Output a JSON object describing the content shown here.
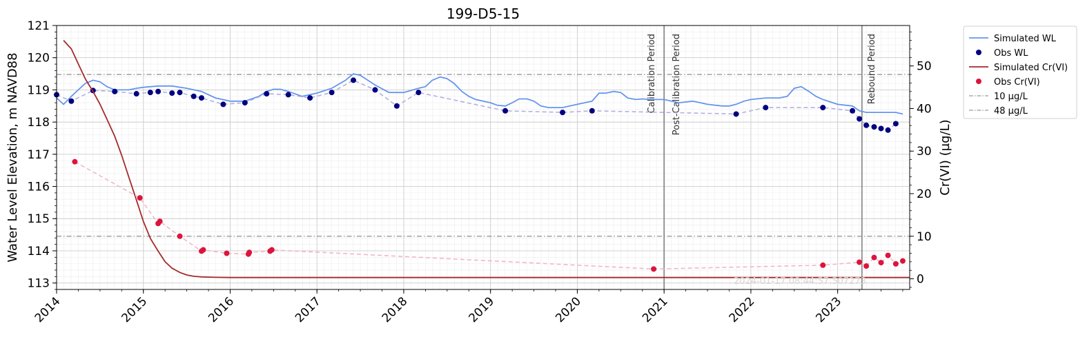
{
  "chart_data": {
    "type": "line",
    "title": "199-D5-15",
    "xlabel": "",
    "ylabel": "Water Level Elevation, m NAVD88",
    "y2label": "Cr(VI) (µg/L)",
    "xlim": [
      2014.0,
      2023.83
    ],
    "ylim": [
      112.8,
      121.0
    ],
    "y2lim": [
      -2.5,
      59.5
    ],
    "xticks": [
      2014,
      2015,
      2016,
      2017,
      2018,
      2019,
      2020,
      2021,
      2022,
      2023
    ],
    "xtick_labels": [
      "2014",
      "2015",
      "2016",
      "2017",
      "2018",
      "2019",
      "2020",
      "2021",
      "2022",
      "2023"
    ],
    "yticks": [
      113,
      114,
      115,
      116,
      117,
      118,
      119,
      120,
      121
    ],
    "ytick_labels": [
      "113",
      "114",
      "115",
      "116",
      "117",
      "118",
      "119",
      "120",
      "121"
    ],
    "y2ticks": [
      0,
      10,
      20,
      30,
      40,
      50
    ],
    "y2tick_labels": [
      "0",
      "10",
      "20",
      "30",
      "40",
      "50"
    ],
    "grid": true,
    "legend_position": "outside-top-right",
    "watermark": "2024-01-17 08:44:57.507273",
    "vertical_lines": [
      {
        "x": 2021.0,
        "labels": [
          "Calibration Period",
          "Post-Calibration Period"
        ]
      },
      {
        "x": 2023.28,
        "labels": [
          "Rebound Period"
        ]
      }
    ],
    "horizontal_lines": [
      {
        "name": "10 µg/L",
        "y2": 10,
        "color": "#808080"
      },
      {
        "name": "48 µg/L",
        "y2": 48,
        "color": "#808080"
      }
    ],
    "series": [
      {
        "name": "Simulated WL",
        "kind": "line",
        "axis": "left",
        "color": "#6495ed",
        "x": [
          2014.0,
          2014.08,
          2014.17,
          2014.25,
          2014.33,
          2014.42,
          2014.5,
          2014.58,
          2014.67,
          2014.75,
          2014.83,
          2014.92,
          2015.0,
          2015.17,
          2015.33,
          2015.5,
          2015.67,
          2015.83,
          2016.0,
          2016.17,
          2016.33,
          2016.42,
          2016.5,
          2016.58,
          2016.67,
          2016.83,
          2017.0,
          2017.17,
          2017.33,
          2017.42,
          2017.5,
          2017.67,
          2017.83,
          2018.0,
          2018.17,
          2018.25,
          2018.33,
          2018.42,
          2018.5,
          2018.58,
          2018.67,
          2018.75,
          2018.83,
          2019.0,
          2019.08,
          2019.17,
          2019.25,
          2019.33,
          2019.42,
          2019.5,
          2019.58,
          2019.67,
          2019.75,
          2019.83,
          2020.0,
          2020.17,
          2020.25,
          2020.33,
          2020.42,
          2020.5,
          2020.58,
          2020.67,
          2020.75,
          2020.83,
          2021.0,
          2021.17,
          2021.33,
          2021.42,
          2021.5,
          2021.67,
          2021.75,
          2021.83,
          2021.92,
          2022.0,
          2022.17,
          2022.33,
          2022.42,
          2022.5,
          2022.58,
          2022.67,
          2022.75,
          2022.83,
          2023.0,
          2023.17,
          2023.25,
          2023.33,
          2023.5,
          2023.67,
          2023.75
        ],
        "y": [
          118.75,
          118.55,
          118.8,
          119.0,
          119.2,
          119.3,
          119.25,
          119.1,
          119.0,
          119.0,
          119.0,
          119.05,
          119.08,
          119.12,
          119.12,
          119.05,
          118.95,
          118.75,
          118.65,
          118.65,
          118.8,
          118.95,
          119.02,
          119.02,
          118.95,
          118.8,
          118.9,
          119.05,
          119.3,
          119.5,
          119.45,
          119.15,
          118.92,
          118.92,
          119.05,
          119.1,
          119.3,
          119.4,
          119.35,
          119.2,
          118.95,
          118.8,
          118.7,
          118.6,
          118.52,
          118.5,
          118.6,
          118.72,
          118.72,
          118.65,
          118.5,
          118.45,
          118.45,
          118.45,
          118.55,
          118.65,
          118.9,
          118.9,
          118.95,
          118.92,
          118.75,
          118.7,
          118.72,
          118.7,
          118.7,
          118.6,
          118.65,
          118.6,
          118.55,
          118.5,
          118.5,
          118.55,
          118.65,
          118.7,
          118.75,
          118.75,
          118.8,
          119.05,
          119.1,
          118.95,
          118.8,
          118.7,
          118.55,
          118.5,
          118.35,
          118.3,
          118.3,
          118.3,
          118.25
        ]
      },
      {
        "name": "Obs WL",
        "kind": "scatter",
        "axis": "left",
        "color": "#000080",
        "dashed_color": "#b0b0e0",
        "x": [
          2014.0,
          2014.17,
          2014.42,
          2014.67,
          2014.92,
          2015.08,
          2015.17,
          2015.33,
          2015.42,
          2015.58,
          2015.67,
          2015.92,
          2016.17,
          2016.42,
          2016.67,
          2016.92,
          2017.17,
          2017.42,
          2017.67,
          2017.92,
          2018.17,
          2019.17,
          2019.83,
          2020.17,
          2021.83,
          2022.17,
          2022.83,
          2023.17,
          2023.25,
          2023.33,
          2023.42,
          2023.5,
          2023.58,
          2023.67
        ],
        "y": [
          118.85,
          118.65,
          118.98,
          118.95,
          118.88,
          118.92,
          118.95,
          118.9,
          118.92,
          118.8,
          118.75,
          118.55,
          118.6,
          118.88,
          118.85,
          118.75,
          118.92,
          119.3,
          119.0,
          118.5,
          118.92,
          118.35,
          118.3,
          118.35,
          118.25,
          118.45,
          118.45,
          118.35,
          118.1,
          117.9,
          117.85,
          117.8,
          117.75,
          117.95
        ]
      },
      {
        "name": "Simulated Cr(VI)",
        "kind": "line",
        "axis": "right",
        "color": "#a52a2a",
        "x": [
          2014.08,
          2014.17,
          2014.25,
          2014.33,
          2014.42,
          2014.5,
          2014.58,
          2014.67,
          2014.75,
          2014.83,
          2014.92,
          2015.0,
          2015.08,
          2015.17,
          2015.25,
          2015.33,
          2015.42,
          2015.5,
          2015.58,
          2015.67,
          2015.83,
          2016.0,
          2017.0,
          2018.0,
          2019.0,
          2020.0,
          2021.0,
          2022.0,
          2023.0,
          2023.83
        ],
        "y": [
          56.0,
          54.0,
          50.5,
          47.0,
          44.0,
          41.0,
          37.5,
          33.5,
          29.0,
          24.0,
          18.5,
          13.5,
          9.5,
          6.5,
          4.0,
          2.5,
          1.5,
          0.9,
          0.6,
          0.45,
          0.35,
          0.3,
          0.3,
          0.3,
          0.3,
          0.3,
          0.3,
          0.3,
          0.3,
          0.3
        ]
      },
      {
        "name": "Obs Cr(VI)",
        "kind": "scatter",
        "axis": "right",
        "color": "#dc143c",
        "dashed_color": "#f4b6c6",
        "x": [
          2014.21,
          2014.96,
          2015.17,
          2015.19,
          2015.42,
          2015.67,
          2015.69,
          2015.96,
          2016.21,
          2016.22,
          2016.46,
          2016.48,
          2020.88,
          2022.83,
          2023.25,
          2023.33,
          2023.42,
          2023.5,
          2023.58,
          2023.67,
          2023.75
        ],
        "y": [
          27.5,
          19.0,
          13.0,
          13.5,
          10.0,
          6.5,
          6.8,
          6.0,
          5.8,
          6.2,
          6.5,
          6.8,
          2.3,
          3.2,
          3.9,
          3.0,
          5.0,
          3.8,
          5.5,
          3.5,
          4.2
        ]
      }
    ]
  }
}
